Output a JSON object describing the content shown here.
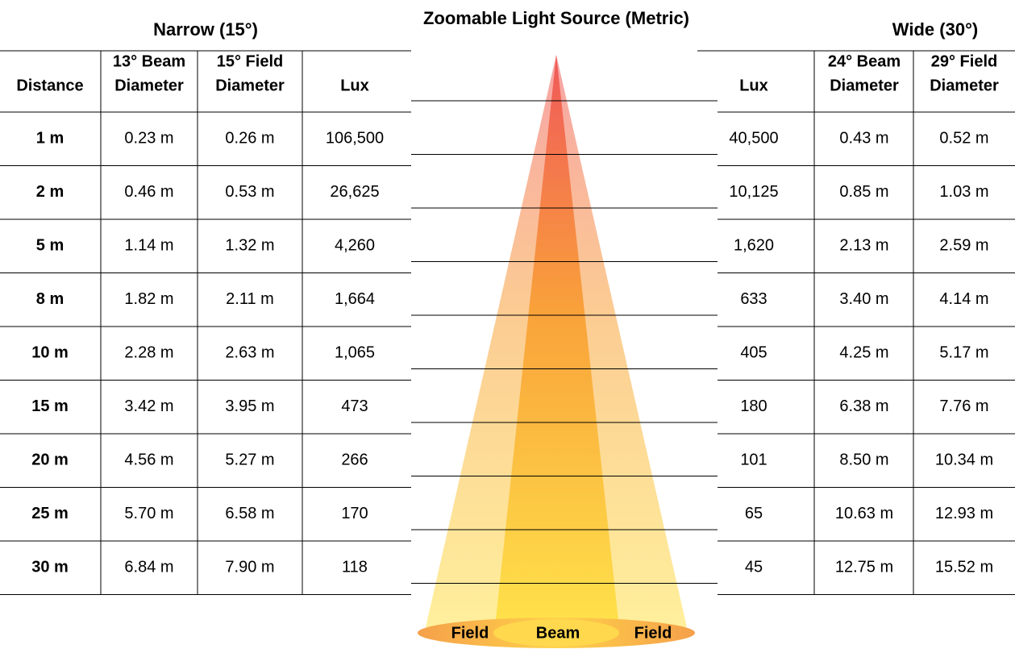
{
  "titles": {
    "narrow": "Narrow (15°)",
    "main": "Zoomable Light Source (Metric)",
    "wide": "Wide (30°)"
  },
  "narrow_headers": [
    [
      "Distance"
    ],
    [
      "13° Beam",
      "Diameter"
    ],
    [
      "15° Field",
      "Diameter"
    ],
    [
      "Lux"
    ]
  ],
  "wide_headers": [
    [
      "Lux"
    ],
    [
      "24° Beam",
      "Diameter"
    ],
    [
      "29° Field",
      "Diameter"
    ]
  ],
  "rows": [
    [
      "1 m",
      "0.23 m",
      "0.26 m",
      "106,500",
      "40,500",
      "0.43 m",
      "0.52 m"
    ],
    [
      "2 m",
      "0.46 m",
      "0.53 m",
      "26,625",
      "10,125",
      "0.85 m",
      "1.03 m"
    ],
    [
      "5 m",
      "1.14 m",
      "1.32 m",
      "4,260",
      "1,620",
      "2.13 m",
      "2.59 m"
    ],
    [
      "8 m",
      "1.82 m",
      "2.11 m",
      "1,664",
      "633",
      "3.40 m",
      "4.14 m"
    ],
    [
      "10 m",
      "2.28 m",
      "2.63 m",
      "1,065",
      "405",
      "4.25 m",
      "5.17 m"
    ],
    [
      "15 m",
      "3.42 m",
      "3.95 m",
      "473",
      "180",
      "6.38 m",
      "7.76 m"
    ],
    [
      "20 m",
      "4.56 m",
      "5.27 m",
      "266",
      "101",
      "8.50 m",
      "10.34 m"
    ],
    [
      "25 m",
      "5.70 m",
      "6.58 m",
      "170",
      "65",
      "10.63 m",
      "12.93 m"
    ],
    [
      "30 m",
      "6.84 m",
      "7.90 m",
      "118",
      "45",
      "12.75 m",
      "15.52 m"
    ]
  ],
  "legend": [
    "Field",
    "Beam",
    "Field"
  ]
}
